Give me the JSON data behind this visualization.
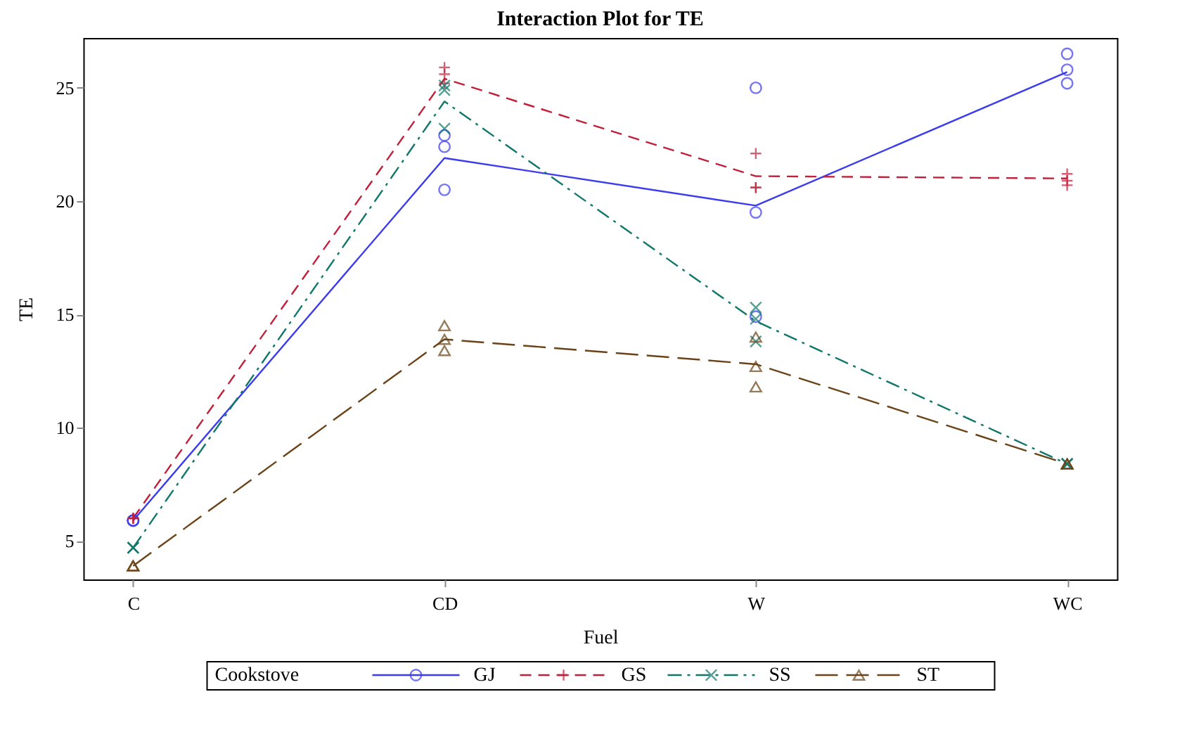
{
  "chart_data": {
    "type": "line",
    "title": "Interaction Plot for TE",
    "xlabel": "Fuel",
    "ylabel": "TE",
    "legend_title": "Cookstove",
    "legend": "bottom",
    "grid": false,
    "categories": [
      "C",
      "CD",
      "W",
      "WC"
    ],
    "ylim": [
      3.3,
      27.2
    ],
    "yticks": [
      5,
      10,
      15,
      20,
      25
    ],
    "series": [
      {
        "name": "GJ",
        "color": "#3b3bf0",
        "line_style": "solid",
        "marker": "none",
        "values": [
          5.9,
          21.9,
          19.8,
          25.7
        ]
      },
      {
        "name": "GS",
        "color": "#c0203a",
        "line_style": "dashed",
        "marker": "none",
        "values": [
          6.0,
          25.4,
          21.1,
          21.0
        ]
      },
      {
        "name": "SS",
        "color": "#10776a",
        "line_style": "dashdot",
        "marker": "none",
        "values": [
          4.7,
          24.4,
          14.7,
          8.4
        ]
      },
      {
        "name": "ST",
        "color": "#6b4318",
        "line_style": "longdash",
        "marker": "none",
        "values": [
          3.9,
          13.9,
          12.8,
          8.4
        ]
      },
      {
        "type": "scatter",
        "color": "#3b3bf0",
        "marker": "circle",
        "x": [
          "C",
          "C",
          "C",
          "CD",
          "CD",
          "CD",
          "W",
          "W",
          "W",
          "WC",
          "WC",
          "WC"
        ],
        "values": [
          5.9,
          5.9,
          5.9,
          22.9,
          22.4,
          20.5,
          25.0,
          19.5,
          14.9,
          26.5,
          25.8,
          25.2
        ]
      },
      {
        "type": "scatter",
        "color": "#c0203a",
        "marker": "cross",
        "x": [
          "C",
          "C",
          "C",
          "CD",
          "CD",
          "CD",
          "W",
          "W",
          "W",
          "WC",
          "WC",
          "WC"
        ],
        "values": [
          6.0,
          6.0,
          6.0,
          25.9,
          25.6,
          25.2,
          22.1,
          20.6,
          20.6,
          21.2,
          20.9,
          20.7
        ]
      },
      {
        "type": "scatter",
        "color": "#10776a",
        "marker": "x",
        "x": [
          "C",
          "C",
          "C",
          "CD",
          "CD",
          "CD",
          "W",
          "W",
          "W",
          "WC",
          "WC",
          "WC"
        ],
        "values": [
          4.7,
          4.7,
          4.7,
          25.1,
          24.9,
          23.2,
          15.3,
          14.8,
          13.8,
          8.4,
          8.4,
          8.4
        ]
      },
      {
        "type": "scatter",
        "color": "#6b4318",
        "marker": "triangle",
        "x": [
          "C",
          "C",
          "C",
          "CD",
          "CD",
          "CD",
          "W",
          "W",
          "W",
          "WC",
          "WC",
          "WC"
        ],
        "values": [
          3.9,
          3.9,
          3.9,
          14.5,
          13.9,
          13.4,
          14.0,
          12.7,
          11.8,
          8.4,
          8.4,
          8.4
        ]
      }
    ]
  }
}
